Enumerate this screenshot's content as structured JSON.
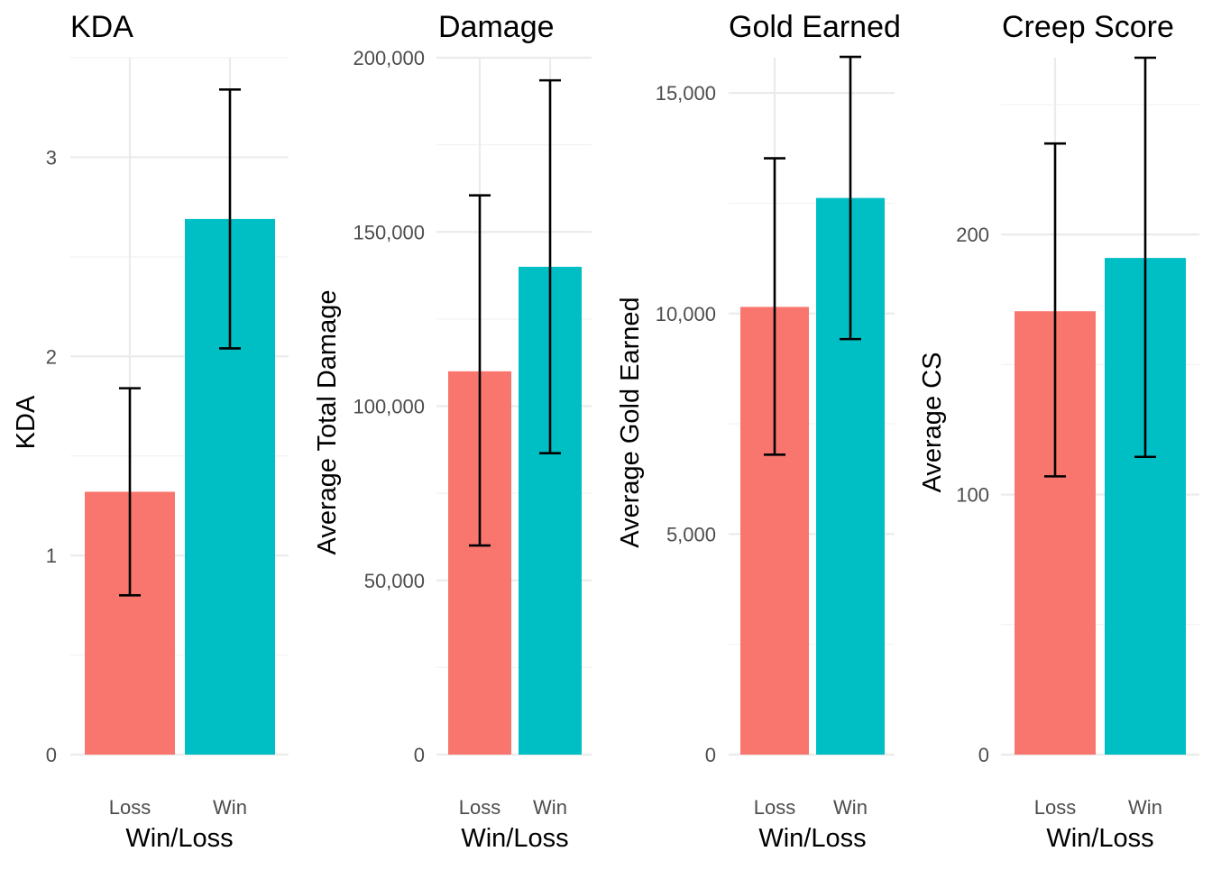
{
  "colors": {
    "loss": "#F8766D",
    "win": "#00BFC4"
  },
  "chart_data": [
    {
      "type": "bar",
      "title": "KDA",
      "xlabel": "Win/Loss",
      "ylabel": "KDA",
      "categories": [
        "Loss",
        "Win"
      ],
      "values": [
        1.32,
        2.69
      ],
      "error_low": [
        0.8,
        2.04
      ],
      "error_high": [
        1.84,
        3.34
      ],
      "ylim": [
        0,
        3.5
      ],
      "yticks": [
        0,
        1,
        2,
        3
      ],
      "ytick_labels": [
        "0",
        "1",
        "2",
        "3"
      ],
      "grid": true
    },
    {
      "type": "bar",
      "title": "Damage",
      "xlabel": "Win/Loss",
      "ylabel": "Average Total Damage",
      "categories": [
        "Loss",
        "Win"
      ],
      "values": [
        110000,
        140000
      ],
      "error_low": [
        60000,
        86500
      ],
      "error_high": [
        160500,
        193500
      ],
      "ylim": [
        0,
        200000
      ],
      "yticks": [
        0,
        50000,
        100000,
        150000,
        200000
      ],
      "ytick_labels": [
        "0",
        "50,000",
        "100,000",
        "150,000",
        "200,000"
      ],
      "grid": true
    },
    {
      "type": "bar",
      "title": "Gold Earned",
      "xlabel": "Win/Loss",
      "ylabel": "Average Gold Earned",
      "categories": [
        "Loss",
        "Win"
      ],
      "values": [
        10150,
        12620
      ],
      "error_low": [
        6800,
        9420
      ],
      "error_high": [
        13520,
        15820
      ],
      "ylim": [
        0,
        15800
      ],
      "yticks": [
        0,
        5000,
        10000,
        15000
      ],
      "ytick_labels": [
        "0",
        "5,000",
        "10,000",
        "15,000"
      ],
      "grid": true
    },
    {
      "type": "bar",
      "title": "Creep Score",
      "xlabel": "Win/Loss",
      "ylabel": "Average CS",
      "categories": [
        "Loss",
        "Win"
      ],
      "values": [
        170.5,
        191
      ],
      "error_low": [
        107,
        114.5
      ],
      "error_high": [
        235,
        268
      ],
      "ylim": [
        0,
        268
      ],
      "yticks": [
        0,
        100,
        200
      ],
      "ytick_labels": [
        "0",
        "100",
        "200"
      ],
      "grid": true
    }
  ]
}
